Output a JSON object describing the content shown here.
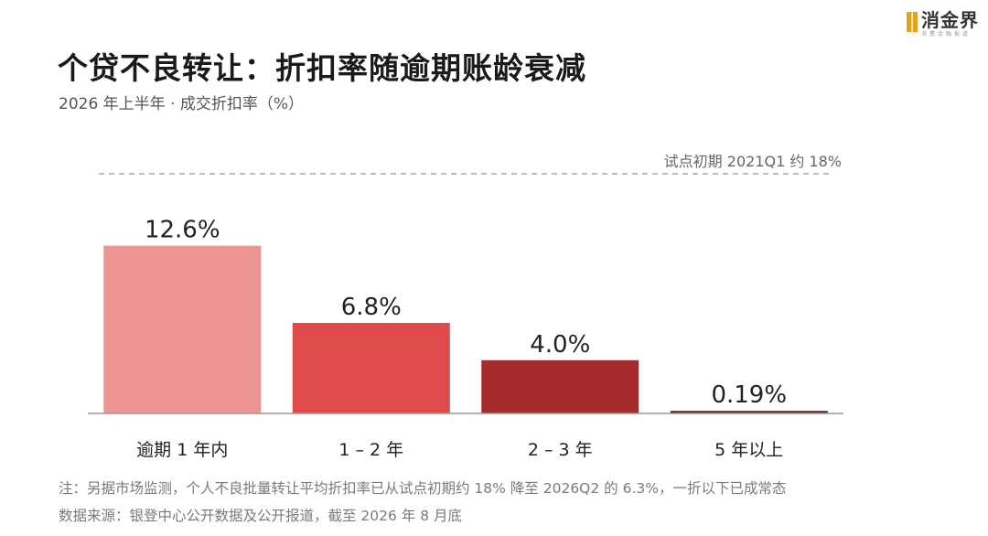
{
  "header": {
    "logo_name": "消金界",
    "logo_sub": "消费金融报道",
    "title": "个贷不良转让：折扣率随逾期账龄衰减",
    "subtitle": "2026 年上半年 · 成交折扣率（%）"
  },
  "chart_data": {
    "type": "bar",
    "categories": [
      "逾期 1 年内",
      "1 – 2 年",
      "2 – 3 年",
      "5 年以上"
    ],
    "values": [
      12.6,
      6.8,
      4.0,
      0.19
    ],
    "value_labels": [
      "12.6%",
      "6.8%",
      "4.0%",
      "0.19%"
    ],
    "colors": [
      "#ec9593",
      "#e04a4b",
      "#a52b2d",
      "#6e1a1d"
    ],
    "reference_line": {
      "value": 18,
      "label": "试点初期 2021Q1 约 18%",
      "style": "dashed",
      "color": "#bdbdbd"
    },
    "ylim": [
      0,
      18
    ],
    "grid": false
  },
  "footer": {
    "note": "注：另据市场监测，个人不良批量转让平均折扣率已从试点初期约 18% 降至 2026Q2 的 6.3%，一折以下已成常态",
    "source": "数据来源：银登中心公开数据及公开报道，截至 2026 年 8 月底"
  }
}
